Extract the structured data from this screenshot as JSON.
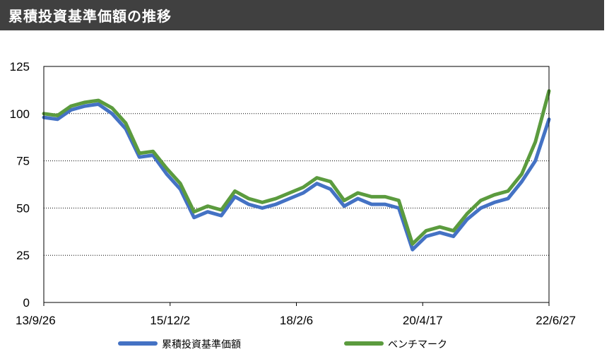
{
  "title": "累積投資基準価額の推移",
  "chart_data": {
    "type": "line",
    "ylim": [
      0,
      125
    ],
    "y_ticks": [
      "0",
      "25",
      "50",
      "75",
      "100",
      "125"
    ],
    "x_ticks": [
      "13/9/26",
      "15/12/2",
      "18/2/6",
      "20/4/17",
      "22/6/27"
    ],
    "grid": true,
    "legend_position": "bottom",
    "x": [
      "13/9/26",
      "13/12/1",
      "14/3/1",
      "14/6/1",
      "14/9/1",
      "14/12/1",
      "15/3/1",
      "15/6/1",
      "15/9/1",
      "15/12/2",
      "16/3/1",
      "16/6/1",
      "16/9/1",
      "16/12/1",
      "17/3/1",
      "17/6/1",
      "17/9/1",
      "17/12/1",
      "18/2/6",
      "18/5/1",
      "18/8/1",
      "18/11/1",
      "19/2/1",
      "19/5/1",
      "19/8/1",
      "19/11/1",
      "20/2/1",
      "20/4/17",
      "20/7/1",
      "20/10/1",
      "21/1/1",
      "21/4/1",
      "21/7/1",
      "21/10/1",
      "22/1/1",
      "22/3/1",
      "22/5/1",
      "22/6/27"
    ],
    "series": [
      {
        "name": "累積投資基準価額",
        "color": "#4472C4",
        "values": [
          98,
          97,
          102,
          104,
          105,
          100,
          92,
          77,
          78,
          68,
          60,
          45,
          48,
          46,
          56,
          52,
          50,
          52,
          55,
          58,
          63,
          60,
          51,
          55,
          52,
          52,
          50,
          28,
          35,
          37,
          35,
          44,
          50,
          53,
          55,
          64,
          75,
          97
        ]
      },
      {
        "name": "ベンチマーク",
        "color": "#5B9B3E",
        "values": [
          100,
          99,
          104,
          106,
          107,
          103,
          95,
          79,
          80,
          71,
          63,
          48,
          51,
          49,
          59,
          55,
          53,
          55,
          58,
          61,
          66,
          64,
          54,
          58,
          56,
          56,
          54,
          31,
          38,
          40,
          38,
          47,
          54,
          57,
          59,
          68,
          85,
          112
        ]
      }
    ]
  }
}
